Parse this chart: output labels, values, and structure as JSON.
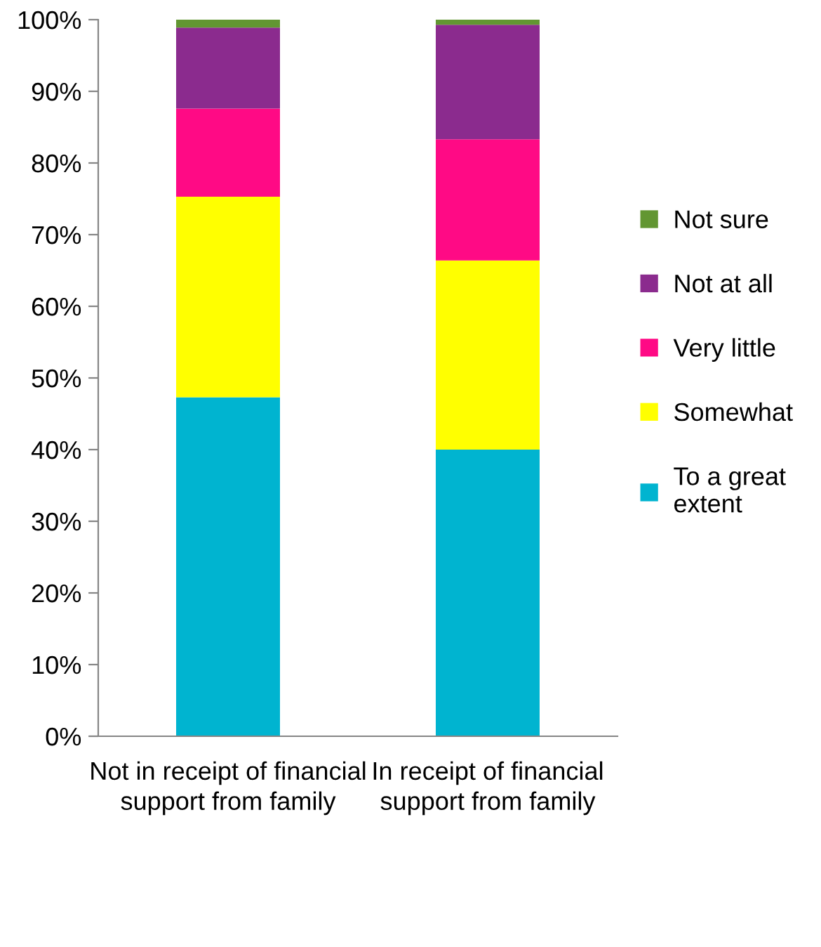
{
  "chart_data": {
    "type": "bar",
    "stacked": true,
    "categories": [
      "Not in receipt of financial support from family",
      "In receipt of financial support from family"
    ],
    "series": [
      {
        "name": "To a great extent",
        "color": "#00b4d0",
        "values": [
          47.3,
          40.0
        ]
      },
      {
        "name": "Somewhat",
        "color": "#ffff00",
        "values": [
          28.0,
          26.4
        ]
      },
      {
        "name": "Very little",
        "color": "#ff0a85",
        "values": [
          12.3,
          16.9
        ]
      },
      {
        "name": "Not at all",
        "color": "#8b2b8e",
        "values": [
          11.3,
          16.0
        ]
      },
      {
        "name": "Not sure",
        "color": "#629632",
        "values": [
          1.1,
          0.7
        ]
      }
    ],
    "ylim": [
      0,
      100
    ],
    "yticks": [
      {
        "value": 0,
        "label": "0%"
      },
      {
        "value": 10,
        "label": "10%"
      },
      {
        "value": 20,
        "label": "20%"
      },
      {
        "value": 30,
        "label": "30%"
      },
      {
        "value": 40,
        "label": "40%"
      },
      {
        "value": 50,
        "label": "50%"
      },
      {
        "value": 60,
        "label": "60%"
      },
      {
        "value": 70,
        "label": "70%"
      },
      {
        "value": 80,
        "label": "80%"
      },
      {
        "value": 90,
        "label": "90%"
      },
      {
        "value": 100,
        "label": "100%"
      }
    ],
    "grid": false,
    "legend": "right"
  }
}
